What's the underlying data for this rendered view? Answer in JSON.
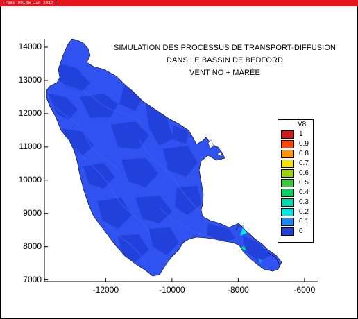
{
  "header": {
    "frame_label": "Frame 001",
    "date": "05 Jan 2012",
    "bar_color": "#e8141c"
  },
  "title": {
    "line1": "SIMULATION DES PROCESSUS DE TRANSPORT-DIFFUSION",
    "line2": "DANS LE BASSIN DE BEDFORD",
    "line3": "VENT NO + MARÉE"
  },
  "axes": {
    "x_ticks": [
      "-12000",
      "-10000",
      "-8000",
      "-6000"
    ],
    "y_ticks": [
      "14000",
      "13000",
      "12000",
      "11000",
      "10000",
      "9000",
      "8000",
      "7000"
    ],
    "xlim": [
      -13850,
      -5600
    ],
    "ylim": [
      6950,
      14250
    ]
  },
  "legend": {
    "variable": "V8",
    "levels": [
      {
        "label": "1",
        "color": "#cc1a1a"
      },
      {
        "label": "0.9",
        "color": "#ff4500"
      },
      {
        "label": "0.8",
        "color": "#ff9500"
      },
      {
        "label": "0.7",
        "color": "#f2e600"
      },
      {
        "label": "0.6",
        "color": "#9bd300"
      },
      {
        "label": "0.5",
        "color": "#3ec83e"
      },
      {
        "label": "0.4",
        "color": "#00cf63"
      },
      {
        "label": "0.3",
        "color": "#00d6b0"
      },
      {
        "label": "0.2",
        "color": "#00e5e5"
      },
      {
        "label": "0.1",
        "color": "#1a8cff"
      },
      {
        "label": "0",
        "color": "#1f3fd6"
      }
    ]
  },
  "map": {
    "base_color": "#2f52f0",
    "contour_color": "#1c3ee0",
    "outline_color": "#000000"
  }
}
